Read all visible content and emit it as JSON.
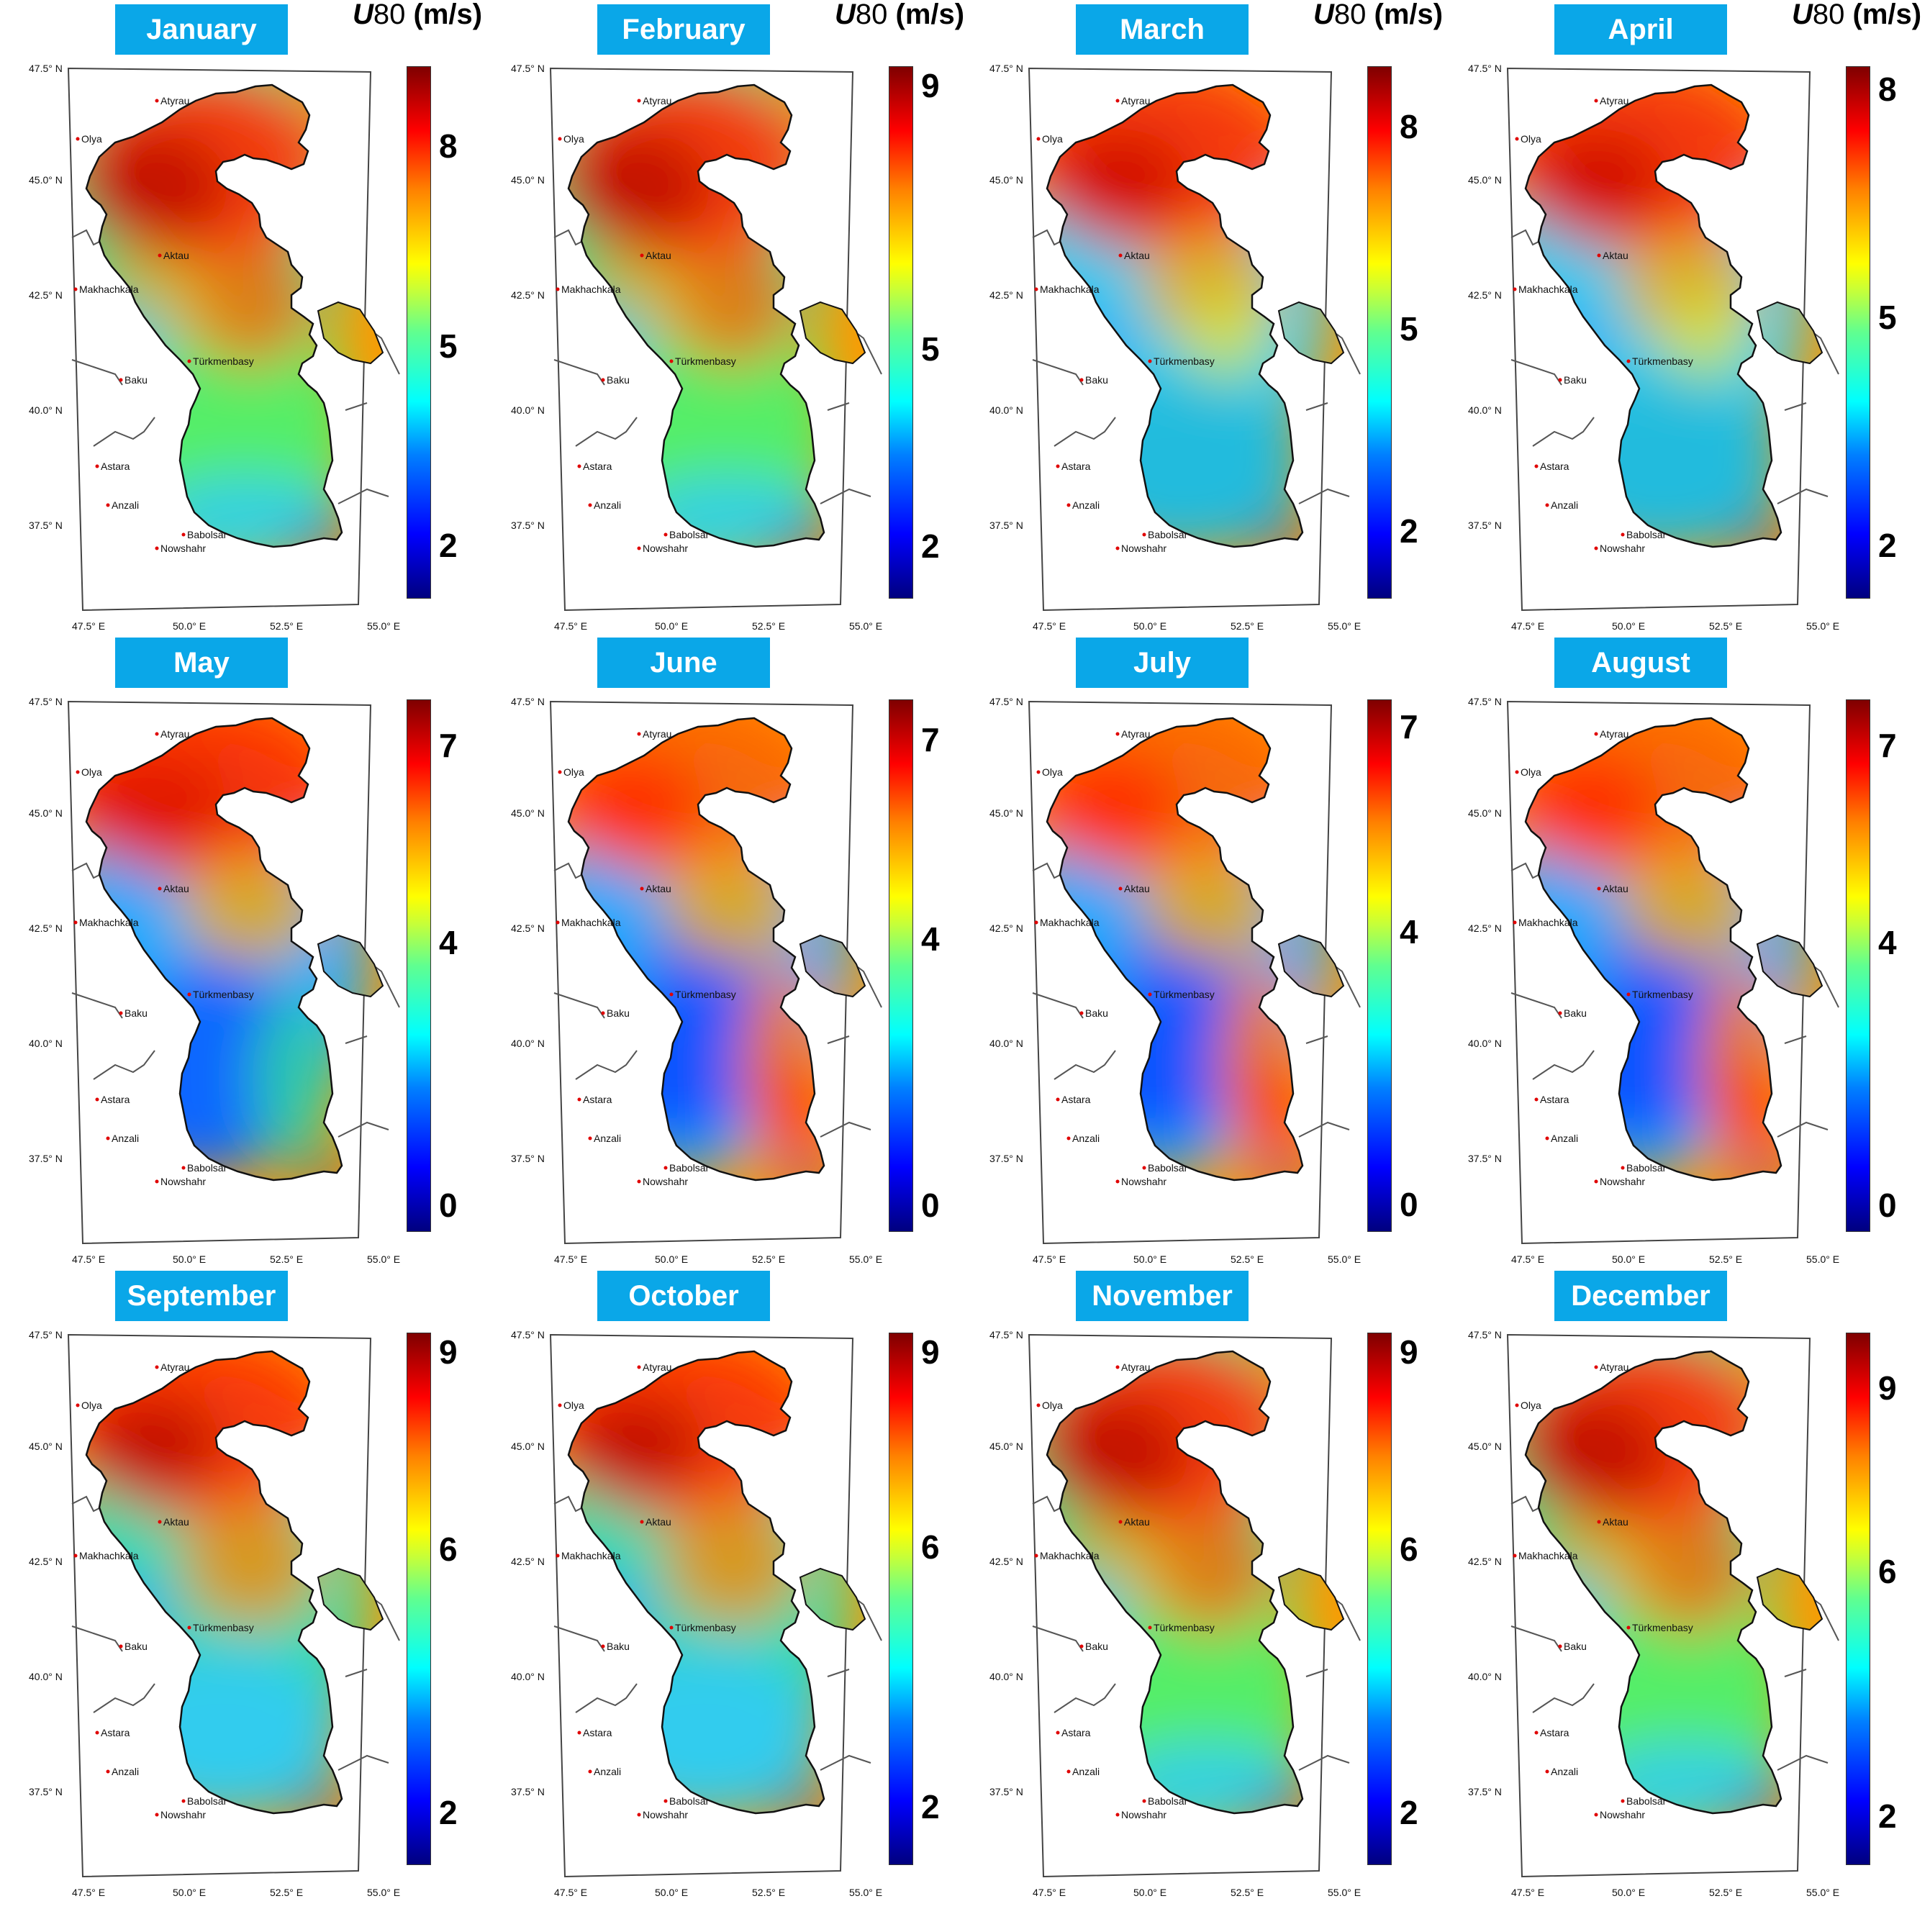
{
  "units_label": {
    "symbol": "U",
    "height": "80",
    "unit": "(m/s)"
  },
  "lat_labels": [
    "47.5° N",
    "45.0° N",
    "42.5° N",
    "40.0° N",
    "37.5° N"
  ],
  "lon_labels": [
    "47.5° E",
    "50.0° E",
    "52.5° E",
    "55.0° E"
  ],
  "cities": [
    "Atyrau",
    "Olya",
    "Aktau",
    "Makhachkala",
    "Türkmenbasy",
    "Baku",
    "Astara",
    "Anzali",
    "Babolsar",
    "Nowshahr"
  ],
  "colormap": "jet",
  "panels": [
    {
      "month": "January",
      "show_units": true,
      "ticks": [
        "8",
        "5",
        "2"
      ],
      "range": [
        1.2,
        9.2
      ],
      "regime": "winter"
    },
    {
      "month": "February",
      "show_units": true,
      "ticks": [
        "9",
        "5",
        "2"
      ],
      "range": [
        1.2,
        9.3
      ],
      "regime": "winter"
    },
    {
      "month": "March",
      "show_units": true,
      "ticks": [
        "8",
        "5",
        "2"
      ],
      "range": [
        1.0,
        8.9
      ],
      "regime": "spring"
    },
    {
      "month": "April",
      "show_units": true,
      "ticks": [
        "8",
        "5",
        "2"
      ],
      "range": [
        1.3,
        8.3
      ],
      "regime": "spring"
    },
    {
      "month": "May",
      "show_units": false,
      "ticks": [
        "7",
        "4",
        "0"
      ],
      "range": [
        -0.4,
        7.7
      ],
      "regime": "summer-early"
    },
    {
      "month": "June",
      "show_units": false,
      "ticks": [
        "7",
        "4",
        "0"
      ],
      "range": [
        -0.4,
        7.6
      ],
      "regime": "summer"
    },
    {
      "month": "July",
      "show_units": false,
      "ticks": [
        "7",
        "4",
        "0"
      ],
      "range": [
        -0.4,
        7.4
      ],
      "regime": "summer"
    },
    {
      "month": "August",
      "show_units": false,
      "ticks": [
        "7",
        "4",
        "0"
      ],
      "range": [
        -0.4,
        7.7
      ],
      "regime": "summer"
    },
    {
      "month": "September",
      "show_units": false,
      "ticks": [
        "9",
        "6",
        "2"
      ],
      "range": [
        1.2,
        9.3
      ],
      "regime": "autumn"
    },
    {
      "month": "October",
      "show_units": false,
      "ticks": [
        "9",
        "6",
        "2"
      ],
      "range": [
        1.1,
        9.3
      ],
      "regime": "autumn"
    },
    {
      "month": "November",
      "show_units": false,
      "ticks": [
        "9",
        "6",
        "2"
      ],
      "range": [
        1.2,
        9.3
      ],
      "regime": "winter"
    },
    {
      "month": "December",
      "show_units": false,
      "ticks": [
        "9",
        "6",
        "2"
      ],
      "range": [
        1.2,
        9.9
      ],
      "regime": "winter"
    }
  ]
}
